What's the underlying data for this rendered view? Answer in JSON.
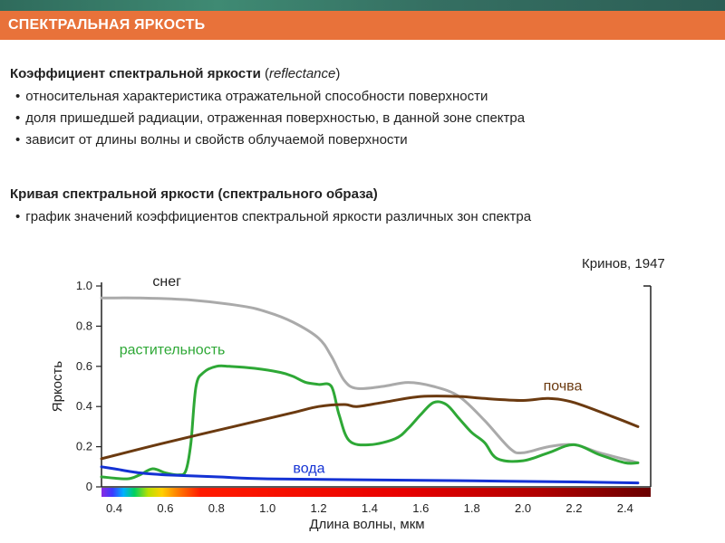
{
  "header": {
    "title": "СПЕКТРАЛЬНАЯ ЯРКОСТЬ"
  },
  "section1": {
    "heading": "Коэффициент спектральной яркости",
    "heading_open": " (",
    "heading_term": "reflectance",
    "heading_close": ")",
    "bullets": [
      "относительная характеристика отражательной способности поверхности",
      "доля пришедшей радиации, отраженная поверхностью, в данной зоне спектра",
      "зависит от длины волны и свойств облучаемой поверхности"
    ]
  },
  "section2": {
    "heading": "Кривая спектральной яркости (спектрального образа)",
    "bullets": [
      "график значений коэффициентов спектральной яркости различных зон спектра"
    ]
  },
  "bullet_glyph": "•",
  "citation": "Кринов, 1947",
  "chart_data": {
    "type": "line",
    "xlabel": "Длина волны, мкм",
    "ylabel": "Яркость",
    "xlim": [
      0.35,
      2.5
    ],
    "ylim": [
      0,
      1.0
    ],
    "x_ticks": [
      0.4,
      0.6,
      0.8,
      1.0,
      1.2,
      1.4,
      1.6,
      1.8,
      2.0,
      2.2,
      2.4
    ],
    "x_tick_labels": [
      "0.4",
      "0.6",
      "0.8",
      "1.0",
      "1.2",
      "1.4",
      "1.6",
      "1.8",
      "2.0",
      "2.2",
      "2.4"
    ],
    "y_ticks": [
      0,
      0.2,
      0.4,
      0.6,
      0.8,
      1.0
    ],
    "y_tick_labels": [
      "0",
      "0.2",
      "0.4",
      "0.6",
      "0.8",
      "1.0"
    ],
    "grid": false,
    "spectrum_bar": true,
    "series": [
      {
        "name": "снег",
        "color": "#aaaaaa",
        "x": [
          0.35,
          0.5,
          0.7,
          0.9,
          1.0,
          1.1,
          1.2,
          1.25,
          1.3,
          1.35,
          1.45,
          1.55,
          1.65,
          1.75,
          1.85,
          1.95,
          2.0,
          2.1,
          2.2,
          2.3,
          2.45
        ],
        "y": [
          0.94,
          0.94,
          0.93,
          0.9,
          0.87,
          0.82,
          0.74,
          0.65,
          0.53,
          0.49,
          0.5,
          0.52,
          0.5,
          0.45,
          0.33,
          0.19,
          0.17,
          0.2,
          0.21,
          0.17,
          0.12
        ]
      },
      {
        "name": "растительность",
        "color": "#2ea836",
        "x": [
          0.35,
          0.45,
          0.5,
          0.55,
          0.6,
          0.65,
          0.68,
          0.7,
          0.72,
          0.75,
          0.8,
          0.85,
          0.95,
          1.05,
          1.1,
          1.15,
          1.2,
          1.25,
          1.28,
          1.32,
          1.4,
          1.5,
          1.55,
          1.6,
          1.65,
          1.7,
          1.75,
          1.8,
          1.85,
          1.9,
          2.0,
          2.1,
          2.2,
          2.3,
          2.4,
          2.45
        ],
        "y": [
          0.05,
          0.04,
          0.06,
          0.09,
          0.07,
          0.06,
          0.08,
          0.22,
          0.5,
          0.57,
          0.6,
          0.6,
          0.59,
          0.57,
          0.55,
          0.52,
          0.51,
          0.5,
          0.36,
          0.23,
          0.21,
          0.24,
          0.29,
          0.36,
          0.42,
          0.41,
          0.34,
          0.27,
          0.22,
          0.14,
          0.13,
          0.17,
          0.21,
          0.16,
          0.12,
          0.12
        ]
      },
      {
        "name": "почва",
        "color": "#6b3a10",
        "x": [
          0.35,
          0.6,
          0.9,
          1.1,
          1.2,
          1.3,
          1.35,
          1.45,
          1.6,
          1.75,
          1.85,
          2.0,
          2.1,
          2.2,
          2.35,
          2.45
        ],
        "y": [
          0.14,
          0.22,
          0.31,
          0.37,
          0.4,
          0.41,
          0.4,
          0.42,
          0.45,
          0.45,
          0.44,
          0.43,
          0.44,
          0.42,
          0.35,
          0.3
        ]
      },
      {
        "name": "вода",
        "color": "#1432d4",
        "x": [
          0.35,
          0.4,
          0.5,
          0.6,
          0.8,
          1.0,
          1.4,
          1.8,
          2.2,
          2.45
        ],
        "y": [
          0.1,
          0.09,
          0.07,
          0.06,
          0.05,
          0.04,
          0.035,
          0.03,
          0.025,
          0.02
        ]
      }
    ],
    "series_label_anchors": [
      {
        "name": "снег",
        "x": 0.55,
        "y": 1.0
      },
      {
        "name": "растительность",
        "x": 0.42,
        "y": 0.66
      },
      {
        "name": "почва",
        "x": 2.08,
        "y": 0.48
      },
      {
        "name": "вода",
        "x": 1.1,
        "y": 0.07
      }
    ]
  }
}
